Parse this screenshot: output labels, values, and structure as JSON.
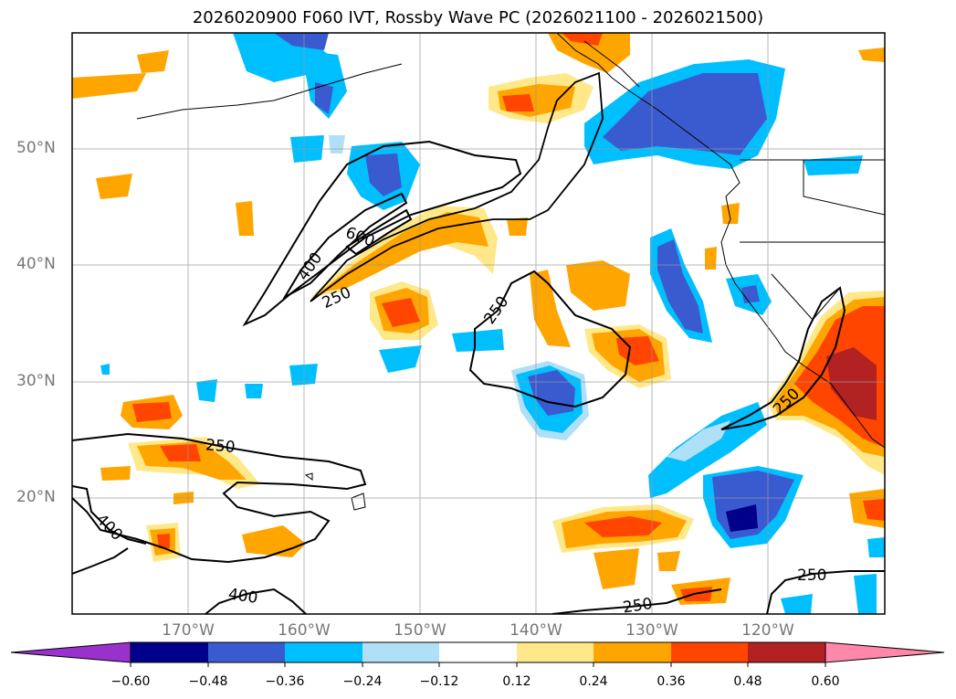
{
  "title": "2026020900 F060 IVT, Rossby Wave PC (2026021100 - 2026021500)",
  "lat_labels": [
    "50°N",
    "40°N",
    "30°N",
    "20°N"
  ],
  "lon_labels": [
    "170°W",
    "160°W",
    "150°W",
    "140°W",
    "130°W",
    "120°W"
  ],
  "colorbar": {
    "ticks": [
      "−0.60",
      "−0.48",
      "−0.36",
      "−0.24",
      "−0.12",
      "0.12",
      "0.24",
      "0.36",
      "0.48",
      "0.60"
    ],
    "colors": [
      "#9932cc",
      "#00008b",
      "#3a5bcf",
      "#00bfff",
      "#b0e0f8",
      "#ffffff",
      "#ffe88a",
      "#ffa500",
      "#ff4500",
      "#b22222",
      "#ff88aa"
    ]
  },
  "contour_labels": [
    "400",
    "600",
    "250",
    "250",
    "250",
    "400",
    "400",
    "250",
    "250",
    "250"
  ]
}
